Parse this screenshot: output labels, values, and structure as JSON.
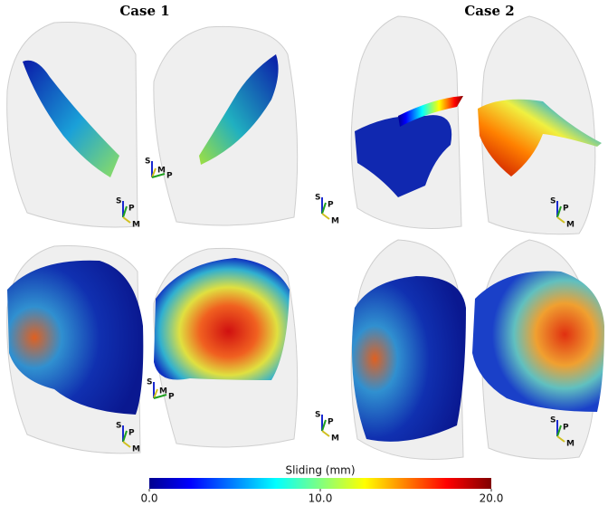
{
  "titles": [
    "Case 1",
    "Case 2"
  ],
  "colorbar": {
    "label": "Sliding (mm)",
    "lim": [
      0,
      20
    ],
    "ticks": [
      {
        "value": 0,
        "label": "0.0"
      },
      {
        "value": 10,
        "label": "10.0"
      },
      {
        "value": 20,
        "label": "20.0"
      }
    ]
  },
  "triads": [
    {
      "labels": [
        "S",
        "M",
        "P"
      ]
    },
    {
      "labels": [
        "S",
        "P",
        "M"
      ]
    },
    {
      "labels": [
        "S",
        "P",
        "M"
      ]
    },
    {
      "labels": [
        "S",
        "P",
        "M"
      ]
    },
    {
      "labels": [
        "S",
        "M",
        "P"
      ]
    },
    {
      "labels": [
        "S",
        "P",
        "M"
      ]
    },
    {
      "labels": [
        "S",
        "P",
        "M"
      ]
    },
    {
      "labels": [
        "S",
        "P",
        "M"
      ]
    }
  ]
}
